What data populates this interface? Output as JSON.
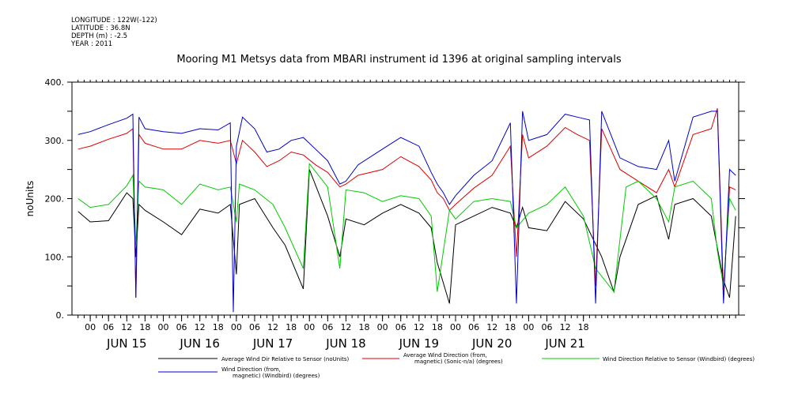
{
  "header": {
    "meta_lines": [
      "LONGITUDE : 122W(-122)",
      "LATITUDE : 36.8N",
      "DEPTH (m) : -2.5",
      "YEAR : 2011"
    ],
    "title": "Mooring M1 Metsys data from MBARI instrument id 1396 at original sampling intervals"
  },
  "chart_data": {
    "type": "line",
    "title": "Mooring M1 Metsys data from MBARI instrument id 1396 at original sampling intervals",
    "xlabel": "",
    "ylabel": "noUnits",
    "ylim": [
      0,
      400
    ],
    "yticks": [
      "0.",
      "100.",
      "200.",
      "300.",
      "400."
    ],
    "x_hour_ticks": [
      "00",
      "06",
      "12",
      "18",
      "00",
      "06",
      "12",
      "18",
      "00",
      "06",
      "12",
      "18",
      "00",
      "06",
      "12",
      "18",
      "00",
      "06",
      "12",
      "18",
      "00",
      "06",
      "12",
      "18",
      "00",
      "06",
      "12",
      "18"
    ],
    "x_day_labels": [
      "JUN 15",
      "JUN 16",
      "JUN 17",
      "JUN 18",
      "JUN 19",
      "JUN 20",
      "JUN 21"
    ],
    "grid": false,
    "legend_position": "bottom",
    "series": [
      {
        "name": "Average Wind Dir Relative to Sensor (noUnits)",
        "color": "#000000",
        "points": [
          [
            -4,
            178
          ],
          [
            0,
            160
          ],
          [
            6,
            162
          ],
          [
            12,
            210
          ],
          [
            14,
            200
          ],
          [
            15,
            100
          ],
          [
            16,
            190
          ],
          [
            18,
            180
          ],
          [
            24,
            160
          ],
          [
            30,
            138
          ],
          [
            36,
            182
          ],
          [
            42,
            175
          ],
          [
            46,
            190
          ],
          [
            48,
            70
          ],
          [
            49,
            190
          ],
          [
            54,
            200
          ],
          [
            60,
            150
          ],
          [
            64,
            120
          ],
          [
            70,
            45
          ],
          [
            72,
            250
          ],
          [
            78,
            170
          ],
          [
            82,
            100
          ],
          [
            84,
            165
          ],
          [
            90,
            155
          ],
          [
            96,
            175
          ],
          [
            102,
            190
          ],
          [
            108,
            175
          ],
          [
            112,
            150
          ],
          [
            114,
            90
          ],
          [
            118,
            20
          ],
          [
            120,
            155
          ],
          [
            126,
            170
          ],
          [
            132,
            185
          ],
          [
            138,
            175
          ],
          [
            140,
            150
          ],
          [
            142,
            185
          ],
          [
            144,
            150
          ],
          [
            150,
            145
          ],
          [
            156,
            195
          ],
          [
            162,
            165
          ],
          [
            168,
            100
          ],
          [
            172,
            40
          ],
          [
            174,
            100
          ],
          [
            180,
            190
          ],
          [
            186,
            205
          ],
          [
            190,
            130
          ],
          [
            192,
            190
          ],
          [
            198,
            200
          ],
          [
            204,
            170
          ],
          [
            208,
            60
          ],
          [
            210,
            30
          ],
          [
            212,
            170
          ]
        ]
      },
      {
        "name": "Average Wind Direction (from, magnetic) (Sonic-n/a) (degrees)",
        "color": "#e00000",
        "points": [
          [
            -4,
            285
          ],
          [
            0,
            290
          ],
          [
            6,
            302
          ],
          [
            12,
            312
          ],
          [
            14,
            320
          ],
          [
            15,
            30
          ],
          [
            16,
            310
          ],
          [
            18,
            295
          ],
          [
            24,
            285
          ],
          [
            30,
            285
          ],
          [
            36,
            300
          ],
          [
            42,
            295
          ],
          [
            46,
            300
          ],
          [
            48,
            260
          ],
          [
            50,
            300
          ],
          [
            54,
            280
          ],
          [
            58,
            255
          ],
          [
            62,
            265
          ],
          [
            66,
            280
          ],
          [
            70,
            275
          ],
          [
            74,
            258
          ],
          [
            78,
            245
          ],
          [
            82,
            220
          ],
          [
            84,
            225
          ],
          [
            88,
            240
          ],
          [
            96,
            250
          ],
          [
            102,
            272
          ],
          [
            108,
            255
          ],
          [
            112,
            232
          ],
          [
            114,
            210
          ],
          [
            116,
            200
          ],
          [
            118,
            180
          ],
          [
            120,
            190
          ],
          [
            126,
            218
          ],
          [
            132,
            240
          ],
          [
            138,
            290
          ],
          [
            140,
            100
          ],
          [
            142,
            310
          ],
          [
            144,
            270
          ],
          [
            150,
            290
          ],
          [
            156,
            322
          ],
          [
            160,
            310
          ],
          [
            164,
            300
          ],
          [
            166,
            50
          ],
          [
            168,
            320
          ],
          [
            174,
            250
          ],
          [
            180,
            230
          ],
          [
            186,
            210
          ],
          [
            190,
            250
          ],
          [
            192,
            220
          ],
          [
            198,
            310
          ],
          [
            204,
            320
          ],
          [
            206,
            355
          ],
          [
            208,
            40
          ],
          [
            210,
            220
          ],
          [
            212,
            215
          ]
        ]
      },
      {
        "name": "Wind Direction Relative to Sensor (Windbird) (degrees)",
        "color": "#00cc00",
        "points": [
          [
            -4,
            200
          ],
          [
            0,
            185
          ],
          [
            6,
            190
          ],
          [
            12,
            222
          ],
          [
            14,
            240
          ],
          [
            15,
            120
          ],
          [
            16,
            230
          ],
          [
            18,
            220
          ],
          [
            24,
            215
          ],
          [
            30,
            190
          ],
          [
            36,
            225
          ],
          [
            42,
            215
          ],
          [
            46,
            220
          ],
          [
            48,
            160
          ],
          [
            49,
            225
          ],
          [
            54,
            215
          ],
          [
            60,
            190
          ],
          [
            64,
            150
          ],
          [
            70,
            80
          ],
          [
            72,
            260
          ],
          [
            78,
            220
          ],
          [
            82,
            80
          ],
          [
            84,
            215
          ],
          [
            90,
            210
          ],
          [
            96,
            195
          ],
          [
            102,
            205
          ],
          [
            108,
            200
          ],
          [
            112,
            170
          ],
          [
            114,
            40
          ],
          [
            118,
            180
          ],
          [
            120,
            165
          ],
          [
            126,
            195
          ],
          [
            132,
            200
          ],
          [
            138,
            195
          ],
          [
            140,
            150
          ],
          [
            144,
            175
          ],
          [
            150,
            190
          ],
          [
            156,
            220
          ],
          [
            162,
            170
          ],
          [
            166,
            80
          ],
          [
            172,
            40
          ],
          [
            176,
            220
          ],
          [
            180,
            230
          ],
          [
            186,
            200
          ],
          [
            190,
            160
          ],
          [
            192,
            220
          ],
          [
            198,
            230
          ],
          [
            204,
            200
          ],
          [
            206,
            110
          ],
          [
            208,
            50
          ],
          [
            210,
            200
          ],
          [
            212,
            180
          ]
        ]
      },
      {
        "name": "Wind Direction (from, magnetic) (Windbird) (degrees)",
        "color": "#0000cc",
        "points": [
          [
            -4,
            310
          ],
          [
            0,
            315
          ],
          [
            6,
            327
          ],
          [
            12,
            338
          ],
          [
            14,
            345
          ],
          [
            15,
            30
          ],
          [
            16,
            340
          ],
          [
            18,
            320
          ],
          [
            24,
            315
          ],
          [
            30,
            312
          ],
          [
            36,
            320
          ],
          [
            42,
            318
          ],
          [
            46,
            330
          ],
          [
            47,
            5
          ],
          [
            48,
            290
          ],
          [
            50,
            340
          ],
          [
            54,
            320
          ],
          [
            58,
            280
          ],
          [
            62,
            285
          ],
          [
            66,
            300
          ],
          [
            70,
            305
          ],
          [
            74,
            285
          ],
          [
            78,
            265
          ],
          [
            82,
            225
          ],
          [
            84,
            230
          ],
          [
            88,
            258
          ],
          [
            96,
            285
          ],
          [
            102,
            305
          ],
          [
            108,
            290
          ],
          [
            112,
            245
          ],
          [
            114,
            225
          ],
          [
            116,
            210
          ],
          [
            118,
            190
          ],
          [
            120,
            205
          ],
          [
            126,
            240
          ],
          [
            132,
            265
          ],
          [
            138,
            330
          ],
          [
            140,
            20
          ],
          [
            142,
            350
          ],
          [
            144,
            300
          ],
          [
            150,
            310
          ],
          [
            156,
            345
          ],
          [
            160,
            340
          ],
          [
            164,
            335
          ],
          [
            166,
            20
          ],
          [
            168,
            350
          ],
          [
            174,
            270
          ],
          [
            180,
            255
          ],
          [
            186,
            250
          ],
          [
            190,
            300
          ],
          [
            192,
            230
          ],
          [
            198,
            340
          ],
          [
            204,
            350
          ],
          [
            206,
            350
          ],
          [
            208,
            20
          ],
          [
            210,
            250
          ],
          [
            212,
            240
          ]
        ]
      }
    ],
    "legend": [
      {
        "label": "Average Wind Dir Relative to Sensor (noUnits)",
        "color": "#000000"
      },
      {
        "label": "Average Wind Direction (from,\n magnetic) (Sonic-n/a) (degrees)",
        "color": "#e00000"
      },
      {
        "label": "Wind Direction Relative to Sensor (Windbird) (degrees)",
        "color": "#00cc00"
      },
      {
        "label": "Wind Direction (from,\n magnetic) (Windbird) (degrees)",
        "color": "#0000cc"
      }
    ]
  }
}
